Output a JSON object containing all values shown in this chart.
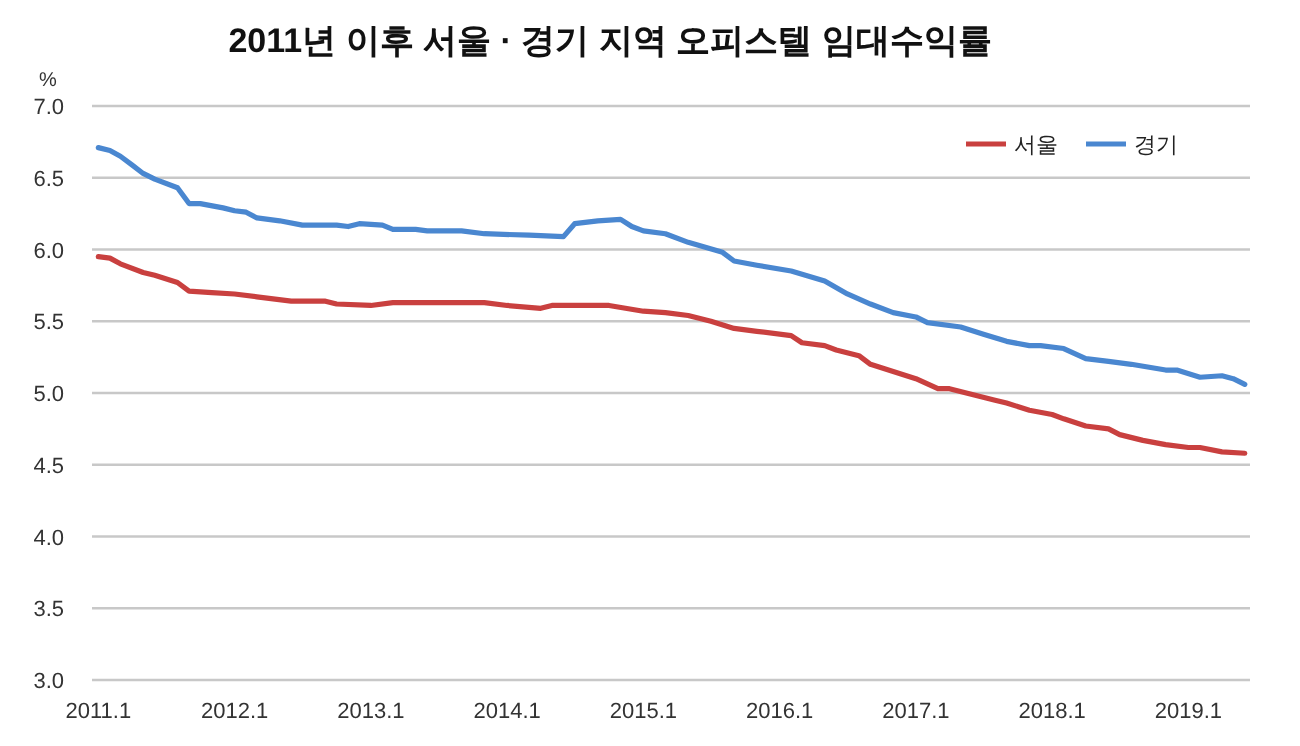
{
  "chart_data": {
    "type": "line",
    "title": "2011년 이후 서울 · 경기 지역 오피스텔 임대수익률",
    "ylabel": "%",
    "xlim": [
      "2010-12-15",
      "2019-06-15"
    ],
    "ylim": [
      3,
      7
    ],
    "xticks": [
      {
        "value": "2011-01",
        "label": "2011.1"
      },
      {
        "value": "2012-01",
        "label": "2012.1"
      },
      {
        "value": "2013-01",
        "label": "2013.1"
      },
      {
        "value": "2014-01",
        "label": "2014.1"
      },
      {
        "value": "2015-01",
        "label": "2015.1"
      },
      {
        "value": "2016-01",
        "label": "2016.1"
      },
      {
        "value": "2017-01",
        "label": "2017.1"
      },
      {
        "value": "2018-01",
        "label": "2018.1"
      },
      {
        "value": "2019-01",
        "label": "2019.1"
      }
    ],
    "yticks": [
      {
        "value": 3,
        "label": "3.0"
      },
      {
        "value": 3.5,
        "label": "3.5"
      },
      {
        "value": 4,
        "label": "4.0"
      },
      {
        "value": 4.5,
        "label": "4.5"
      },
      {
        "value": 5,
        "label": "5.0"
      },
      {
        "value": 5.5,
        "label": "5.5"
      },
      {
        "value": 6,
        "label": "6.0"
      },
      {
        "value": 6.5,
        "label": "6.5"
      },
      {
        "value": 7,
        "label": "7.0"
      }
    ],
    "grid": "y",
    "legend": "top right",
    "series": [
      {
        "name": "서울",
        "color": "#c9403f",
        "x": [
          "2011-01",
          "2011-02",
          "2011-03",
          "2011-05",
          "2011-06",
          "2011-08",
          "2011-09",
          "2011-11",
          "2012-01",
          "2012-03",
          "2012-06",
          "2012-09",
          "2012-10",
          "2013-01",
          "2013-03",
          "2013-05",
          "2013-11",
          "2014-01",
          "2014-04",
          "2014-05",
          "2014-10",
          "2015-01",
          "2015-03",
          "2015-05",
          "2015-07",
          "2015-09",
          "2015-11",
          "2016-02",
          "2016-03",
          "2016-05",
          "2016-06",
          "2016-08",
          "2016-09",
          "2016-11",
          "2017-01",
          "2017-03",
          "2017-04",
          "2017-06",
          "2017-08",
          "2017-09",
          "2017-11",
          "2018-01",
          "2018-02",
          "2018-04",
          "2018-06",
          "2018-07",
          "2018-09",
          "2018-11",
          "2019-01",
          "2019-02",
          "2019-04",
          "2019-06"
        ],
        "values": [
          5.95,
          5.94,
          5.9,
          5.84,
          5.82,
          5.77,
          5.71,
          5.7,
          5.69,
          5.67,
          5.64,
          5.64,
          5.62,
          5.61,
          5.63,
          5.63,
          5.63,
          5.61,
          5.59,
          5.61,
          5.61,
          5.57,
          5.56,
          5.54,
          5.5,
          5.45,
          5.43,
          5.4,
          5.35,
          5.33,
          5.3,
          5.26,
          5.2,
          5.15,
          5.1,
          5.03,
          5.03,
          4.99,
          4.95,
          4.93,
          4.88,
          4.85,
          4.82,
          4.77,
          4.75,
          4.71,
          4.67,
          4.64,
          4.62,
          4.62,
          4.59,
          4.58
        ]
      },
      {
        "name": "경기",
        "color": "#4a87d0",
        "x": [
          "2011-01",
          "2011-02",
          "2011-03",
          "2011-04",
          "2011-05",
          "2011-06",
          "2011-08",
          "2011-09",
          "2011-10",
          "2011-12",
          "2012-01",
          "2012-02",
          "2012-03",
          "2012-05",
          "2012-07",
          "2012-10",
          "2012-11",
          "2012-12",
          "2013-02",
          "2013-03",
          "2013-05",
          "2013-06",
          "2013-09",
          "2013-11",
          "2014-03",
          "2014-06",
          "2014-07",
          "2014-09",
          "2014-11",
          "2014-12",
          "2015-01",
          "2015-03",
          "2015-05",
          "2015-08",
          "2015-09",
          "2015-11",
          "2016-02",
          "2016-05",
          "2016-07",
          "2016-09",
          "2016-11",
          "2017-01",
          "2017-02",
          "2017-05",
          "2017-07",
          "2017-09",
          "2017-11",
          "2017-12",
          "2018-02",
          "2018-04",
          "2018-06",
          "2018-08",
          "2018-11",
          "2018-12",
          "2019-02",
          "2019-04",
          "2019-05",
          "2019-06"
        ],
        "values": [
          6.71,
          6.69,
          6.65,
          6.59,
          6.53,
          6.49,
          6.43,
          6.32,
          6.32,
          6.29,
          6.27,
          6.26,
          6.22,
          6.2,
          6.17,
          6.17,
          6.16,
          6.18,
          6.17,
          6.14,
          6.14,
          6.13,
          6.13,
          6.11,
          6.1,
          6.09,
          6.18,
          6.2,
          6.21,
          6.16,
          6.13,
          6.11,
          6.05,
          5.98,
          5.92,
          5.89,
          5.85,
          5.78,
          5.69,
          5.62,
          5.56,
          5.53,
          5.49,
          5.46,
          5.41,
          5.36,
          5.33,
          5.33,
          5.31,
          5.24,
          5.22,
          5.2,
          5.16,
          5.16,
          5.11,
          5.12,
          5.1,
          5.06
        ]
      }
    ]
  }
}
